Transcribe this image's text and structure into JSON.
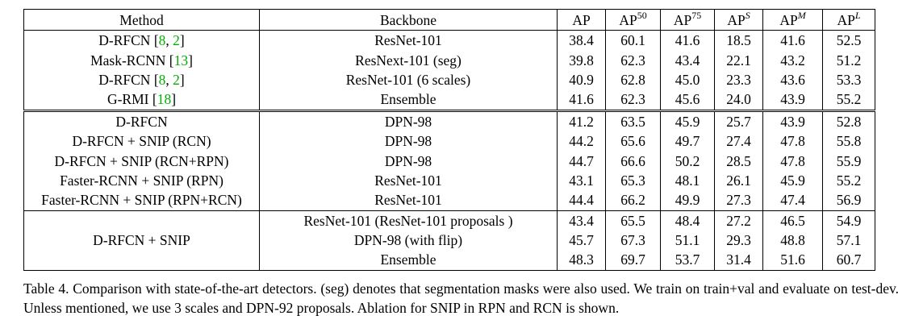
{
  "table": {
    "headers": {
      "method": "Method",
      "backbone": "Backbone",
      "ap": "AP",
      "ap50_base": "AP",
      "ap50_sup": "50",
      "ap75_base": "AP",
      "ap75_sup": "75",
      "aps_base": "AP",
      "aps_sup": "S",
      "apm_base": "AP",
      "apm_sup": "M",
      "apl_base": "AP",
      "apl_sup": "L"
    },
    "rows": [
      {
        "method": "D-RFCN [",
        "c1": "8",
        "sep": ", ",
        "c2": "2",
        "close": "]",
        "backbone": "ResNet-101",
        "ap": "38.4",
        "ap50": "60.1",
        "ap75": "41.6",
        "aps": "18.5",
        "apm": "41.6",
        "apl": "52.5"
      },
      {
        "method": "Mask-RCNN [",
        "c1": "13",
        "close": "]",
        "backbone": "ResNext-101 (seg)",
        "ap": "39.8",
        "ap50": "62.3",
        "ap75": "43.4",
        "aps": "22.1",
        "apm": "43.2",
        "apl": "51.2"
      },
      {
        "method": "D-RFCN [",
        "c1": "8",
        "sep": ", ",
        "c2": "2",
        "close": "]",
        "backbone": "ResNet-101 (6 scales)",
        "ap": "40.9",
        "ap50": "62.8",
        "ap75": "45.0",
        "aps": "23.3",
        "apm": "43.6",
        "apl": "53.3"
      },
      {
        "method": "G-RMI [",
        "c1": "18",
        "close": "]",
        "backbone": "Ensemble",
        "ap": "41.6",
        "ap50": "62.3",
        "ap75": "45.6",
        "aps": "24.0",
        "apm": "43.9",
        "apl": "55.2"
      },
      {
        "method": "D-RFCN",
        "backbone": "DPN-98",
        "ap": "41.2",
        "ap50": "63.5",
        "ap75": "45.9",
        "aps": "25.7",
        "apm": "43.9",
        "apl": "52.8"
      },
      {
        "method": "D-RFCN + SNIP (RCN)",
        "backbone": "DPN-98",
        "ap": "44.2",
        "ap50": "65.6",
        "ap75": "49.7",
        "aps": "27.4",
        "apm": "47.8",
        "apl": "55.8"
      },
      {
        "method": "D-RFCN + SNIP (RCN+RPN)",
        "backbone": "DPN-98",
        "ap": "44.7",
        "ap50": "66.6",
        "ap75": "50.2",
        "aps": "28.5",
        "apm": "47.8",
        "apl": "55.9"
      },
      {
        "method": "Faster-RCNN + SNIP (RPN)",
        "backbone": "ResNet-101",
        "ap": "43.1",
        "ap50": "65.3",
        "ap75": "48.1",
        "aps": "26.1",
        "apm": "45.9",
        "apl": "55.2"
      },
      {
        "method": "Faster-RCNN + SNIP (RPN+RCN)",
        "backbone": "ResNet-101",
        "ap": "44.4",
        "ap50": "66.2",
        "ap75": "49.9",
        "aps": "27.3",
        "apm": "47.4",
        "apl": "56.9"
      },
      {
        "method": "D-RFCN + SNIP",
        "backbone": "ResNet-101 (ResNet-101 proposals )",
        "ap": "43.4",
        "ap50": "65.5",
        "ap75": "48.4",
        "aps": "27.2",
        "apm": "46.5",
        "apl": "54.9"
      },
      {
        "backbone": "DPN-98 (with flip)",
        "ap": "45.7",
        "ap50": "67.3",
        "ap75": "51.1",
        "aps": "29.3",
        "apm": "48.8",
        "apl": "57.1"
      },
      {
        "backbone": "Ensemble",
        "ap": "48.3",
        "ap50": "69.7",
        "ap75": "53.7",
        "aps": "31.4",
        "apm": "51.6",
        "apl": "60.7"
      }
    ]
  },
  "caption": "Table 4. Comparison with state-of-the-art detectors. (seg) denotes that segmentation masks were also used. We train on train+val and evaluate on test-dev. Unless mentioned, we use 3 scales and DPN-92 proposals. Ablation for SNIP in RPN and RCN is shown.",
  "colors": {
    "citation": "#00b000",
    "text": "#000000"
  }
}
